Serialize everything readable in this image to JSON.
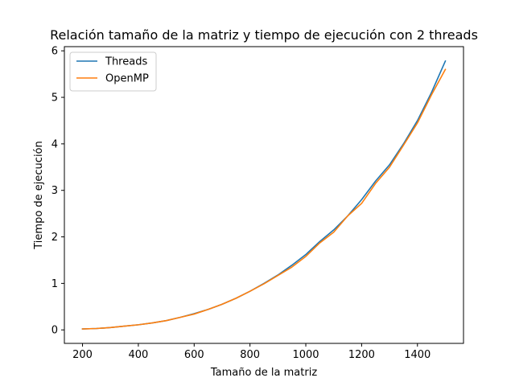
{
  "chart_data": {
    "type": "line",
    "title": "Relación tamaño de la matriz y tiempo de ejecución con 2 threads",
    "xlabel": "Tamaño de la matriz",
    "ylabel": "Tiempo de ejecución",
    "xlim": [
      135,
      1565
    ],
    "ylim": [
      -0.29,
      6.09
    ],
    "xticks": [
      200,
      400,
      600,
      800,
      1000,
      1200,
      1400
    ],
    "yticks": [
      0,
      1,
      2,
      3,
      4,
      5,
      6
    ],
    "legend_position": "top-left",
    "grid": false,
    "series": [
      {
        "name": "Threads",
        "color": "#1f77b4",
        "x": [
          200,
          250,
          300,
          350,
          400,
          450,
          500,
          550,
          600,
          650,
          700,
          750,
          800,
          850,
          900,
          950,
          1000,
          1050,
          1100,
          1150,
          1200,
          1250,
          1300,
          1350,
          1400,
          1450,
          1500
        ],
        "y": [
          0.02,
          0.03,
          0.05,
          0.08,
          0.11,
          0.15,
          0.2,
          0.27,
          0.35,
          0.44,
          0.55,
          0.68,
          0.83,
          1.0,
          1.18,
          1.39,
          1.62,
          1.9,
          2.15,
          2.45,
          2.8,
          3.2,
          3.55,
          4.0,
          4.5,
          5.1,
          5.78
        ]
      },
      {
        "name": "OpenMP",
        "color": "#ff7f0e",
        "x": [
          200,
          250,
          300,
          350,
          400,
          450,
          500,
          550,
          600,
          650,
          700,
          750,
          800,
          850,
          900,
          950,
          1000,
          1050,
          1100,
          1150,
          1200,
          1250,
          1300,
          1350,
          1400,
          1450,
          1500
        ],
        "y": [
          0.02,
          0.03,
          0.05,
          0.08,
          0.11,
          0.15,
          0.2,
          0.27,
          0.34,
          0.44,
          0.55,
          0.68,
          0.83,
          0.99,
          1.17,
          1.35,
          1.58,
          1.87,
          2.1,
          2.45,
          2.72,
          3.15,
          3.5,
          3.97,
          4.45,
          5.05,
          5.6
        ]
      }
    ]
  }
}
